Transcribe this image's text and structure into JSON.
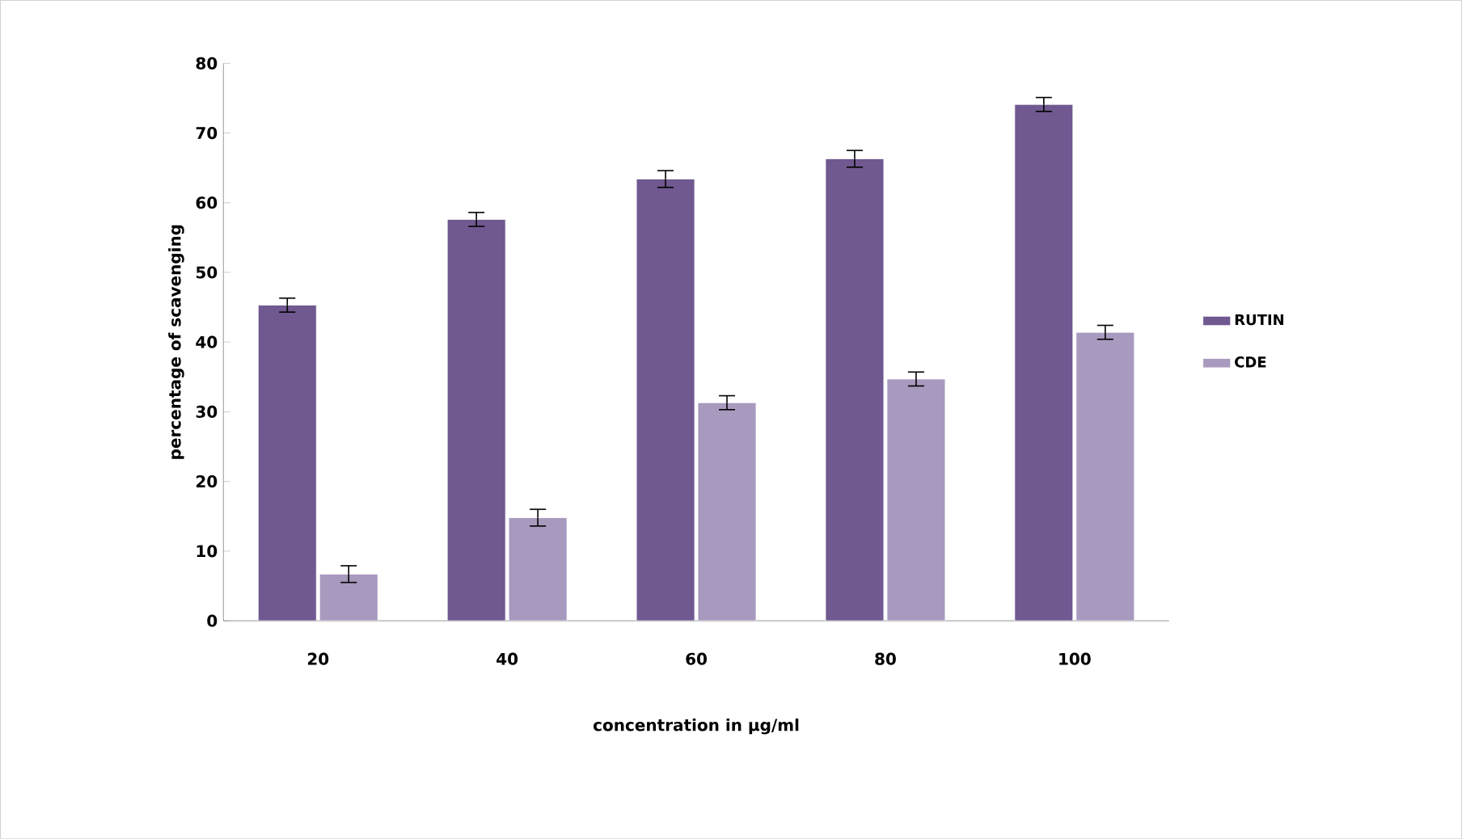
{
  "chart_data": {
    "type": "bar",
    "xlabel": "concentration in µg/ml",
    "ylabel": "percentage of scavenging",
    "categories": [
      "20",
      "40",
      "60",
      "80",
      "100"
    ],
    "series": [
      {
        "name": "RUTIN",
        "color": "#705890",
        "values": [
          45.3,
          57.6,
          63.4,
          66.3,
          74.1
        ],
        "errors": [
          1,
          1,
          1.2,
          1.2,
          1
        ]
      },
      {
        "name": "CDE",
        "color": "#a899be",
        "values": [
          6.7,
          14.8,
          31.3,
          34.7,
          41.4
        ],
        "errors": [
          1.2,
          1.2,
          1,
          1,
          1
        ]
      }
    ],
    "ylim": [
      0,
      80
    ],
    "yticks": [
      0,
      10,
      20,
      30,
      40,
      50,
      60,
      70,
      80
    ],
    "grid": false,
    "legend": "right"
  }
}
